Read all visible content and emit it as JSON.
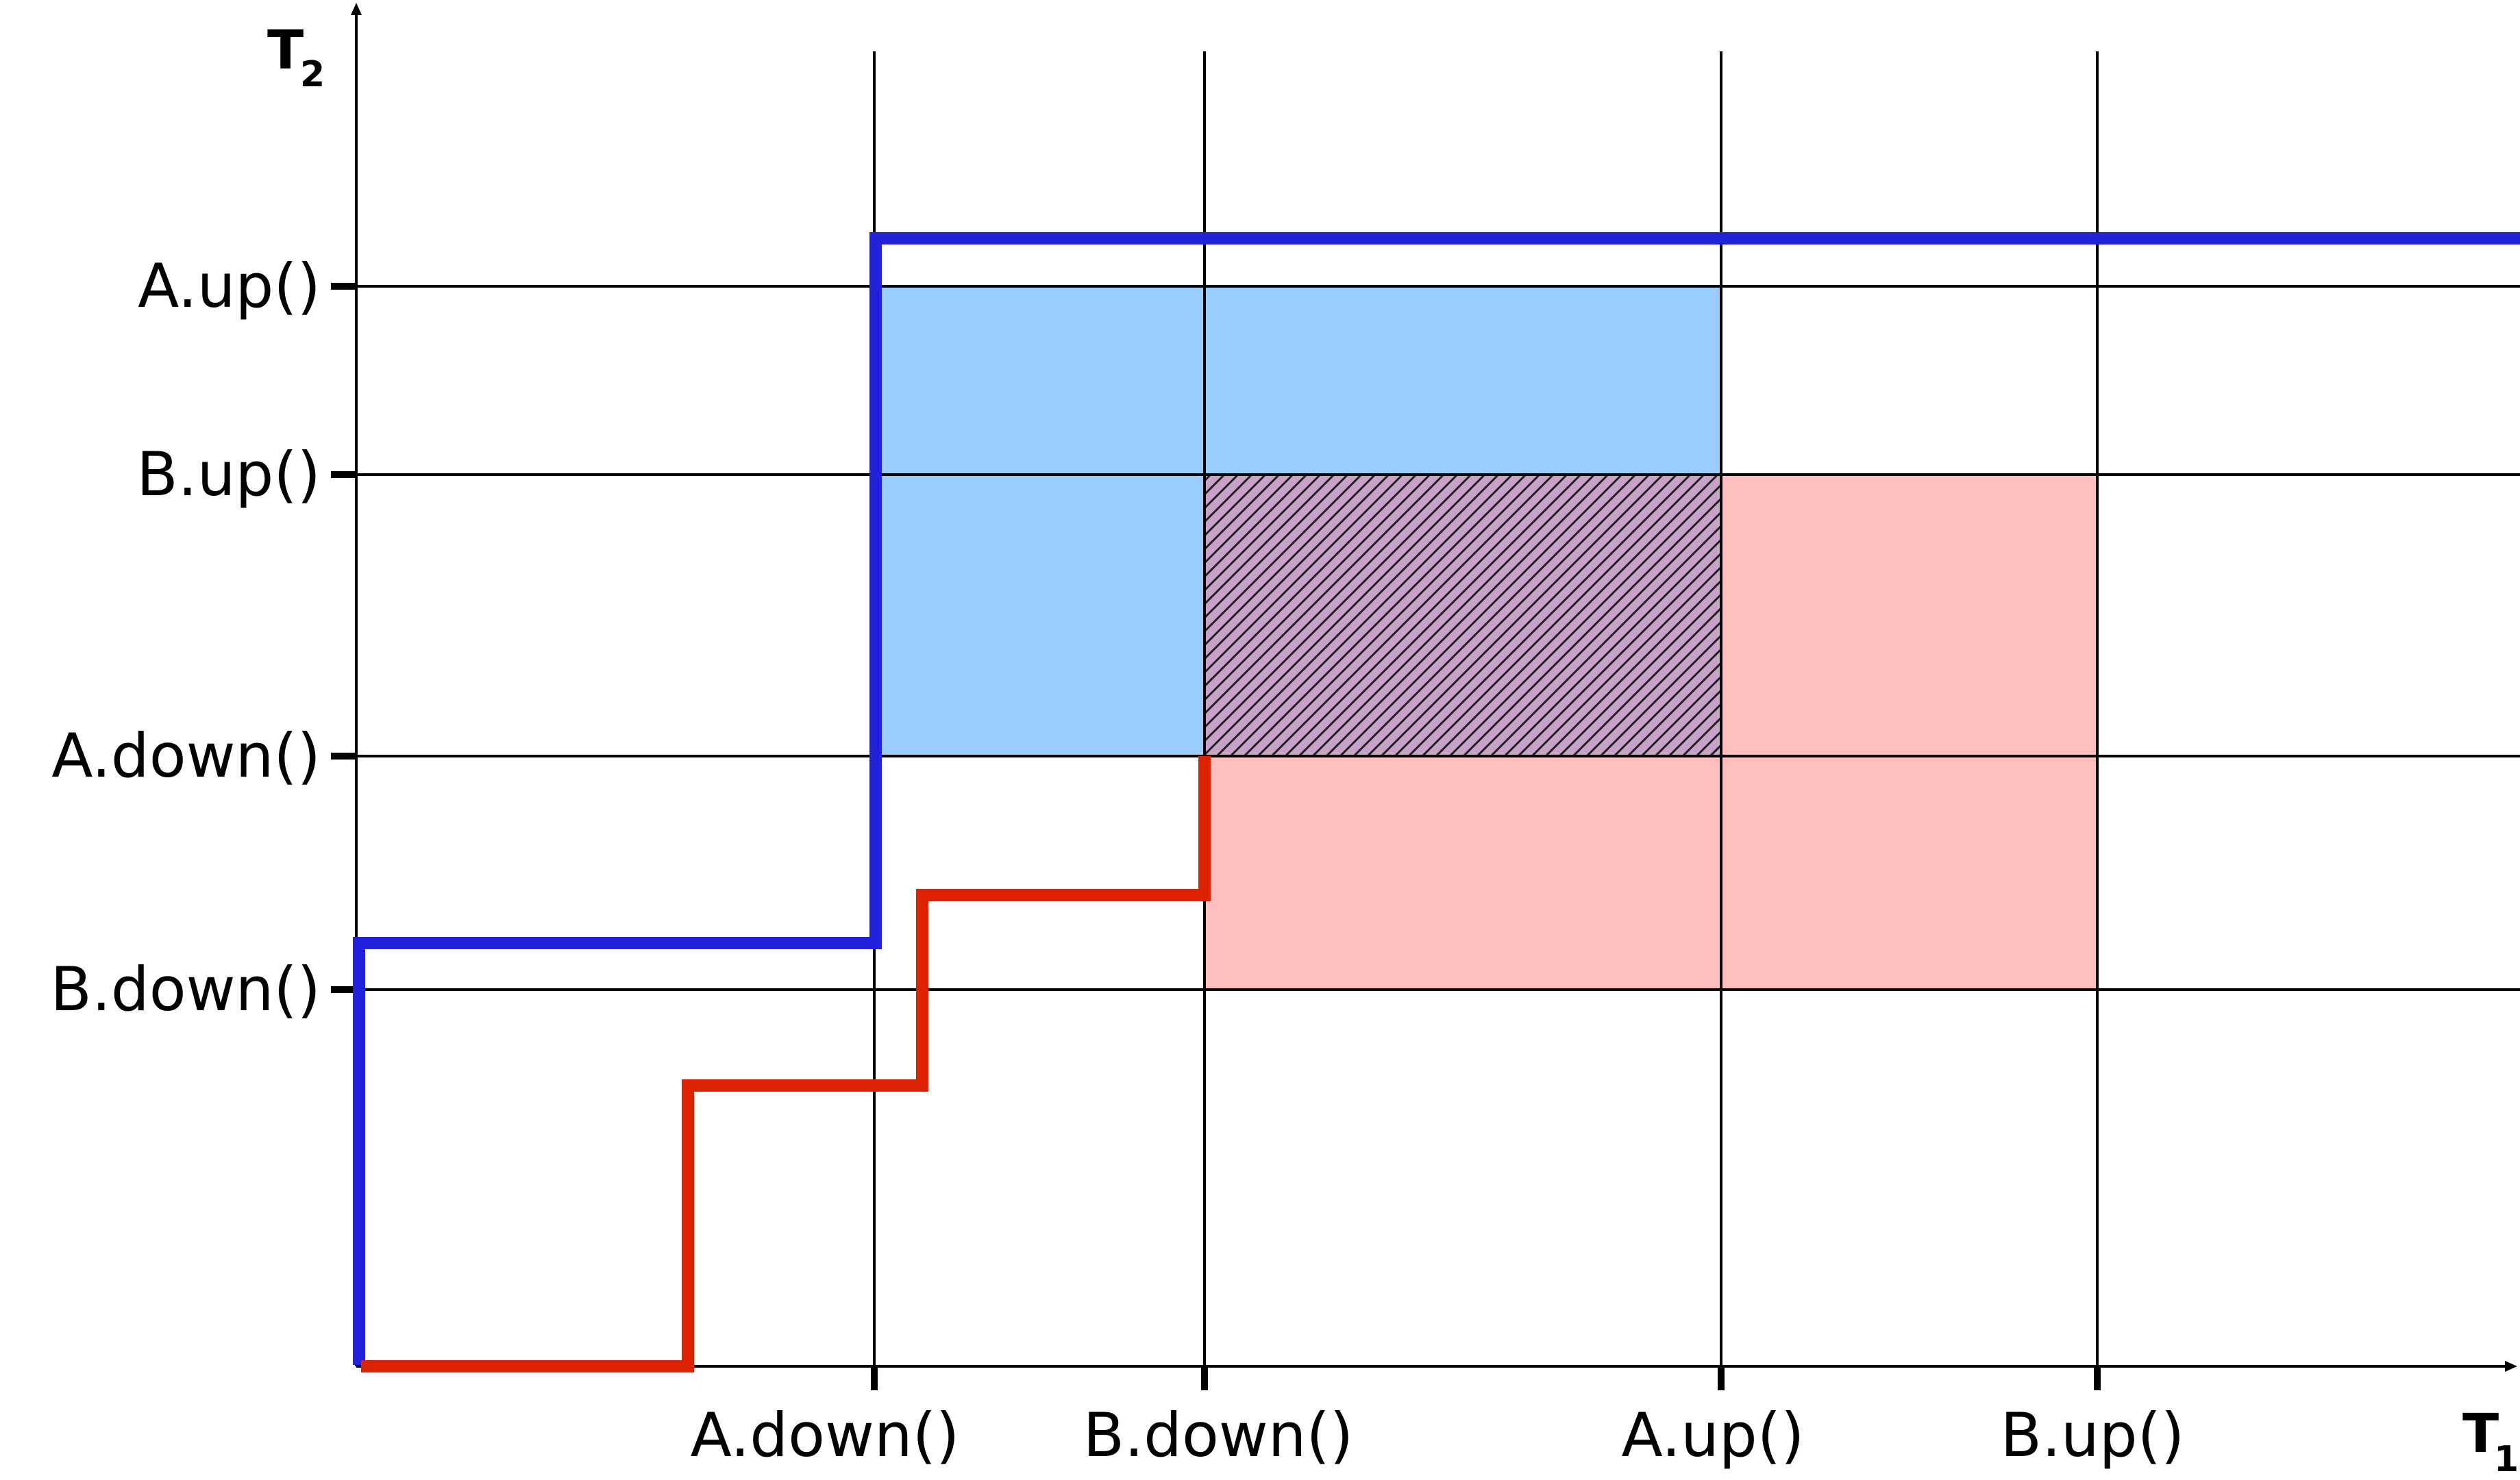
{
  "axes": {
    "x_title": "T",
    "x_subscript": "1",
    "y_title": "T",
    "y_subscript": "2"
  },
  "x_ticks": [
    "A.down()",
    "B.down()",
    "A.up()",
    "B.up()"
  ],
  "y_ticks": [
    "A.up()",
    "B.up()",
    "A.down()",
    "B.down()"
  ],
  "regions": [
    {
      "name": "A-held",
      "color": "#99ccff"
    },
    {
      "name": "B-held",
      "color": "#ffbfbf"
    },
    {
      "name": "deadlock-overlap",
      "color": "#c8a2c8",
      "pattern": "diagonal-hatch"
    }
  ],
  "paths": [
    {
      "name": "blue-trajectory",
      "color": "#2222dd"
    },
    {
      "name": "red-trajectory",
      "color": "#dd2200"
    }
  ]
}
